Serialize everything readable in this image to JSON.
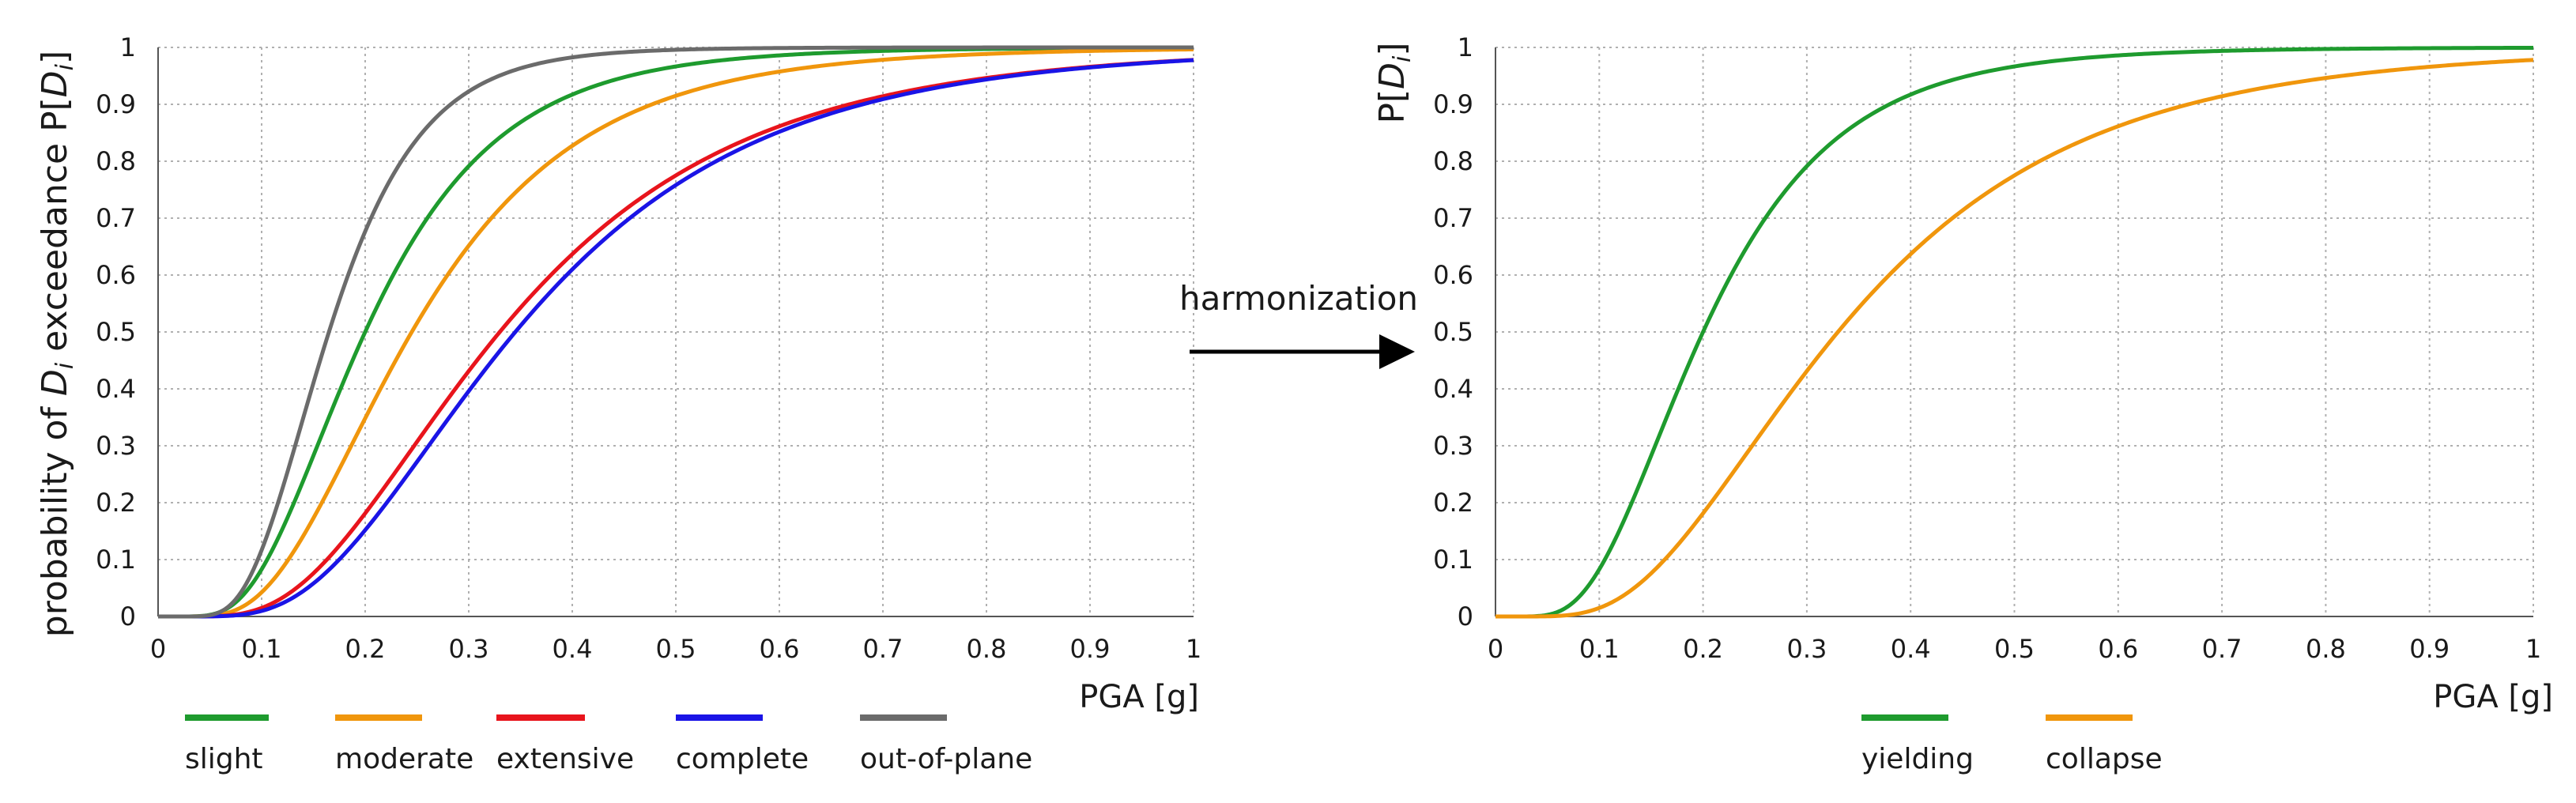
{
  "chart_data": [
    {
      "type": "line",
      "title": "",
      "xlabel": "PGA [g]",
      "ylabel_parts": [
        "probability of ",
        "D",
        "i",
        " exceedance P[",
        "D",
        "i",
        "]"
      ],
      "xlim": [
        0,
        1
      ],
      "ylim": [
        0,
        1
      ],
      "x_ticks": [
        "0",
        "0.1",
        "0.2",
        "0.3",
        "0.4",
        "0.5",
        "0.6",
        "0.7",
        "0.8",
        "0.9",
        "1"
      ],
      "y_ticks": [
        "0",
        "0.1",
        "0.2",
        "0.3",
        "0.4",
        "0.5",
        "0.6",
        "0.7",
        "0.8",
        "0.9",
        "1"
      ],
      "grid": true,
      "legend_position": "bottom",
      "series": [
        {
          "name": "slight",
          "color": "#1e9b2e",
          "median": 0.2,
          "beta": 0.5
        },
        {
          "name": "moderate",
          "color": "#f0960c",
          "median": 0.245,
          "beta": 0.52
        },
        {
          "name": "extensive",
          "color": "#e8141c",
          "median": 0.33,
          "beta": 0.55
        },
        {
          "name": "complete",
          "color": "#1a14e6",
          "median": 0.345,
          "beta": 0.53
        },
        {
          "name": "out-of-plane",
          "color": "#6b6b6b",
          "median": 0.165,
          "beta": 0.42
        }
      ]
    },
    {
      "type": "line",
      "title": "",
      "xlabel": "PGA [g]",
      "ylabel_parts": [
        "P[",
        "D",
        "i",
        "]"
      ],
      "xlim": [
        0,
        1
      ],
      "ylim": [
        0,
        1
      ],
      "x_ticks": [
        "0",
        "0.1",
        "0.2",
        "0.3",
        "0.4",
        "0.5",
        "0.6",
        "0.7",
        "0.8",
        "0.9",
        "1"
      ],
      "y_ticks": [
        "0",
        "0.1",
        "0.2",
        "0.3",
        "0.4",
        "0.5",
        "0.6",
        "0.7",
        "0.8",
        "0.9",
        "1"
      ],
      "grid": true,
      "legend_position": "bottom",
      "series": [
        {
          "name": "yielding",
          "color": "#1e9b2e",
          "median": 0.2,
          "beta": 0.5
        },
        {
          "name": "collapse",
          "color": "#f0960c",
          "median": 0.33,
          "beta": 0.55
        }
      ]
    }
  ],
  "annotation": {
    "label": "harmonization"
  }
}
